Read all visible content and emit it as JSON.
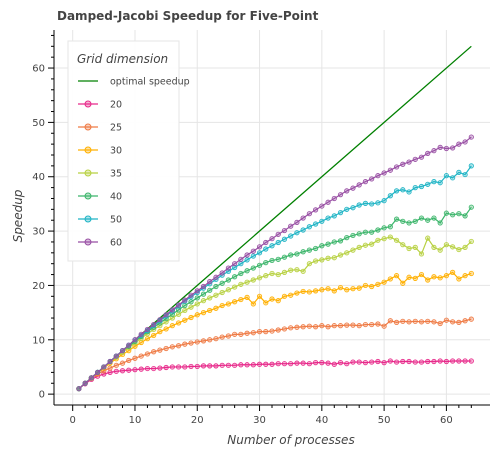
{
  "chart_data": {
    "type": "line",
    "title": "Damped-Jacobi Speedup for Five-Point",
    "xlabel": "Number of processes",
    "ylabel": "Speedup",
    "xlim": [
      -3,
      67
    ],
    "ylim": [
      -2,
      67
    ],
    "x_ticks": [
      0,
      10,
      20,
      30,
      40,
      50,
      60
    ],
    "y_ticks": [
      0,
      10,
      20,
      30,
      40,
      50,
      60
    ],
    "grid": true,
    "legend": {
      "title": "Grid dimension",
      "placement": "top-left"
    },
    "x": [
      1,
      2,
      3,
      4,
      5,
      6,
      7,
      8,
      9,
      10,
      11,
      12,
      13,
      14,
      15,
      16,
      17,
      18,
      19,
      20,
      21,
      22,
      23,
      24,
      25,
      26,
      27,
      28,
      29,
      30,
      31,
      32,
      33,
      34,
      35,
      36,
      37,
      38,
      39,
      40,
      41,
      42,
      43,
      44,
      45,
      46,
      47,
      48,
      49,
      50,
      51,
      52,
      53,
      54,
      55,
      56,
      57,
      58,
      59,
      60,
      61,
      62,
      63,
      64
    ],
    "optimal": {
      "name": "optimal speedup",
      "color": "#008000",
      "x": [
        1,
        64
      ],
      "values": [
        1,
        64
      ]
    },
    "series": [
      {
        "name": "20",
        "color": "#e7298a",
        "values": [
          1,
          1.9,
          2.7,
          3.3,
          3.7,
          4,
          4.2,
          4.3,
          4.4,
          4.5,
          4.6,
          4.7,
          4.7,
          4.8,
          4.9,
          5,
          5,
          5,
          5.1,
          5.1,
          5.2,
          5.2,
          5.2,
          5.3,
          5.3,
          5.3,
          5.4,
          5.4,
          5.4,
          5.5,
          5.5,
          5.5,
          5.6,
          5.6,
          5.6,
          5.7,
          5.7,
          5.6,
          5.8,
          5.8,
          5.7,
          5.5,
          5.8,
          5.6,
          5.9,
          5.9,
          5.8,
          5.9,
          6,
          5.8,
          6.1,
          5.9,
          6,
          6,
          5.9,
          5.9,
          6,
          6,
          6.1,
          6,
          6.1,
          6.1,
          6.1,
          6.1
        ]
      },
      {
        "name": "25",
        "color": "#ef7a44",
        "values": [
          1,
          2,
          2.9,
          3.7,
          4.3,
          4.8,
          5.3,
          5.7,
          6.2,
          6.6,
          7,
          7.4,
          7.8,
          8.1,
          8.4,
          8.7,
          8.9,
          9.2,
          9.4,
          9.6,
          9.8,
          10,
          10.2,
          10.5,
          10.7,
          11,
          11,
          11.2,
          11.3,
          11.5,
          11.5,
          11.6,
          11.8,
          12,
          12.2,
          12.3,
          12.4,
          12.5,
          12.4,
          12.6,
          12.4,
          12.6,
          12.6,
          12.7,
          12.7,
          12.6,
          12.8,
          12.8,
          12.9,
          12.5,
          13.5,
          13.2,
          13.4,
          13.3,
          13.4,
          13.3,
          13.4,
          13.3,
          13,
          13.6,
          13.3,
          13.2,
          13.5,
          13.8
        ]
      },
      {
        "name": "30",
        "color": "#ffb000",
        "values": [
          1,
          2,
          3,
          3.9,
          4.8,
          5.7,
          6.5,
          7.3,
          8,
          8.8,
          9.5,
          10.2,
          10.8,
          11.5,
          12,
          12.6,
          13.1,
          13.6,
          14.1,
          14.6,
          15,
          15.4,
          15.8,
          16.3,
          16.6,
          17,
          17.4,
          17.8,
          16.6,
          18,
          16.8,
          17.5,
          17.2,
          18,
          18.2,
          18.6,
          18.9,
          18.8,
          19,
          19.2,
          19.4,
          19,
          19.6,
          19.2,
          19.4,
          19.5,
          20,
          19.8,
          20.2,
          20.6,
          21.2,
          21.8,
          20.4,
          21.5,
          21.3,
          22,
          21,
          21.6,
          21.4,
          21.8,
          22.4,
          21.2,
          21.8,
          22.2
        ]
      },
      {
        "name": "35",
        "color": "#b8d142",
        "values": [
          1,
          2,
          3,
          4,
          5,
          5.9,
          6.8,
          7.7,
          8.6,
          9.4,
          10.3,
          11.1,
          11.9,
          12.6,
          13.3,
          14,
          14.7,
          15.4,
          16,
          16.6,
          17.2,
          17.7,
          18.2,
          18.7,
          19.2,
          19.7,
          20.2,
          20.6,
          21,
          21.4,
          21.8,
          22.2,
          22,
          22.4,
          22.8,
          22.9,
          22.6,
          24,
          24.5,
          24.7,
          25,
          25.1,
          25.6,
          26,
          26.5,
          27,
          27.4,
          27.6,
          28.3,
          28.6,
          28.9,
          28.3,
          27.5,
          26.8,
          27,
          25.8,
          28.7,
          27,
          26.5,
          27.5,
          27.1,
          26.6,
          27,
          28.1
        ]
      },
      {
        "name": "40",
        "color": "#3bb56a",
        "values": [
          1,
          2,
          3,
          4,
          5,
          6,
          7,
          8,
          8.8,
          9.7,
          10.6,
          11.5,
          12.3,
          13.1,
          13.9,
          14.7,
          15.5,
          16.3,
          17,
          17.7,
          18.4,
          19.1,
          19.8,
          20.4,
          21,
          21.6,
          22.2,
          22.7,
          23.2,
          23.7,
          24.2,
          24.6,
          24.8,
          25.2,
          25.6,
          25.8,
          26.2,
          26.5,
          26.8,
          27.3,
          27.6,
          28,
          28.2,
          28.8,
          29.2,
          29.5,
          29.8,
          29.8,
          30.2,
          30.6,
          30.8,
          32.2,
          31.8,
          31.5,
          31.8,
          32.4,
          32,
          32.4,
          31.5,
          33.3,
          33,
          33.2,
          32.8,
          34.4
        ]
      },
      {
        "name": "50",
        "color": "#1fb4c5",
        "values": [
          1,
          2,
          3,
          4,
          5,
          6,
          7,
          8,
          9,
          10,
          10.8,
          11.7,
          12.6,
          13.5,
          14.4,
          15.3,
          16.2,
          17.1,
          17.9,
          18.7,
          19.5,
          20.3,
          21.1,
          21.9,
          22.6,
          23.3,
          24,
          24.7,
          25.4,
          26,
          26.7,
          27.3,
          27.9,
          28.5,
          29.1,
          29.7,
          30.2,
          30.8,
          31.3,
          31.8,
          32.4,
          32.8,
          33.4,
          34,
          34.3,
          34.8,
          35.1,
          35,
          35.2,
          35.6,
          36.5,
          37.4,
          37.6,
          37.2,
          38,
          38.2,
          38.6,
          39.1,
          38.9,
          40.2,
          39.8,
          40.8,
          40.4,
          42
        ]
      },
      {
        "name": "60",
        "color": "#984ea3",
        "values": [
          1,
          2,
          3,
          4,
          5,
          6,
          7,
          8,
          9,
          10,
          11,
          11.9,
          12.8,
          13.7,
          14.6,
          15.5,
          16.4,
          17.3,
          18.2,
          19,
          19.8,
          20.7,
          21.5,
          22.3,
          23.2,
          24,
          24.8,
          25.6,
          26.3,
          27.1,
          27.9,
          28.6,
          29.4,
          30.1,
          30.9,
          31.6,
          32.4,
          33.2,
          33.9,
          34.6,
          35.3,
          36,
          36.7,
          37.4,
          37.9,
          38.5,
          39.1,
          39.6,
          40.2,
          40.7,
          41.2,
          41.8,
          42.3,
          42.7,
          43.2,
          43.6,
          44.3,
          44.8,
          45.4,
          45.2,
          45.3,
          46,
          46.4,
          47.3
        ]
      }
    ]
  }
}
